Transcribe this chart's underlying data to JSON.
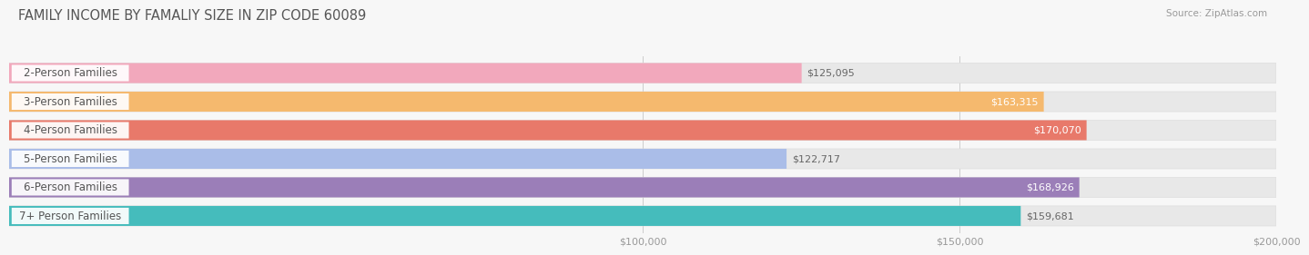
{
  "title": "FAMILY INCOME BY FAMALIY SIZE IN ZIP CODE 60089",
  "source": "Source: ZipAtlas.com",
  "categories": [
    "2-Person Families",
    "3-Person Families",
    "4-Person Families",
    "5-Person Families",
    "6-Person Families",
    "7+ Person Families"
  ],
  "values": [
    125095,
    163315,
    170070,
    122717,
    168926,
    159681
  ],
  "bar_colors": [
    "#F2A8BC",
    "#F5B96E",
    "#E8796A",
    "#AABDE8",
    "#9B7EB8",
    "#45BCBC"
  ],
  "value_label_inside": [
    false,
    true,
    true,
    false,
    true,
    false
  ],
  "xlim_min": 0,
  "xlim_max": 200000,
  "x_ticks": [
    100000,
    150000,
    200000
  ],
  "x_tick_labels": [
    "$100,000",
    "$150,000",
    "$200,000"
  ],
  "background_color": "#f7f7f7",
  "bar_background_color": "#e8e8e8",
  "title_fontsize": 10.5,
  "source_fontsize": 7.5,
  "label_fontsize": 8.5,
  "value_fontsize": 8
}
